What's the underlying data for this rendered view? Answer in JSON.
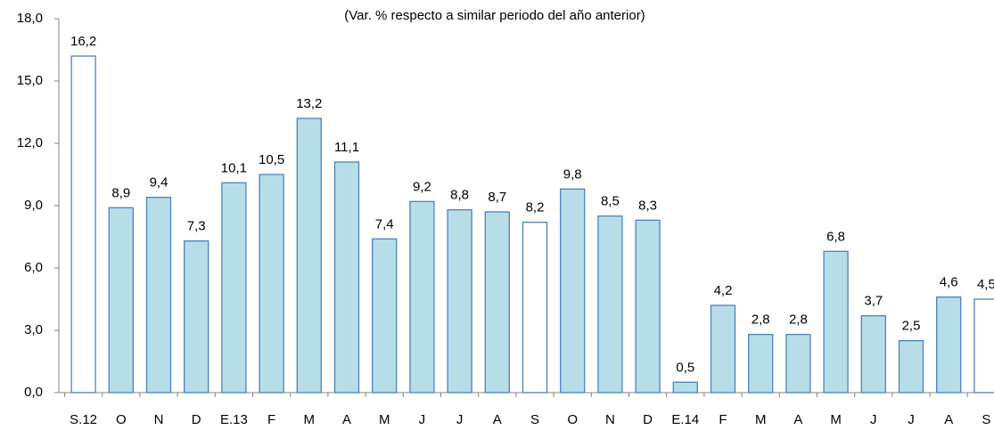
{
  "chart_data": {
    "type": "bar",
    "subtitle": "(Var. % respecto a similar periodo del año anterior)",
    "categories": [
      "S.12",
      "O",
      "N",
      "D",
      "E.13",
      "F",
      "M",
      "A",
      "M",
      "J",
      "J",
      "A",
      "S",
      "O",
      "N",
      "D",
      "E.14",
      "F",
      "M",
      "A",
      "M",
      "J",
      "J",
      "A",
      "S"
    ],
    "values": [
      16.2,
      8.9,
      9.4,
      7.3,
      10.1,
      10.5,
      13.2,
      11.1,
      7.4,
      9.2,
      8.8,
      8.7,
      8.2,
      9.8,
      8.5,
      8.3,
      0.5,
      4.2,
      2.8,
      2.8,
      6.8,
      3.7,
      2.5,
      4.6,
      4.5
    ],
    "value_labels": [
      "16,2",
      "8,9",
      "9,4",
      "7,3",
      "10,1",
      "10,5",
      "13,2",
      "11,1",
      "7,4",
      "9,2",
      "8,8",
      "8,7",
      "8,2",
      "9,8",
      "8,5",
      "8,3",
      "0,5",
      "4,2",
      "2,8",
      "2,8",
      "6,8",
      "3,7",
      "2,5",
      "4,6",
      "4,5"
    ],
    "colors": [
      "#ffffff",
      "#b7dde8",
      "#b7dde8",
      "#b7dde8",
      "#b7dde8",
      "#b7dde8",
      "#b7dde8",
      "#b7dde8",
      "#b7dde8",
      "#b7dde8",
      "#b7dde8",
      "#b7dde8",
      "#ffffff",
      "#b7dde8",
      "#b7dde8",
      "#b7dde8",
      "#b7dde8",
      "#b7dde8",
      "#b7dde8",
      "#b7dde8",
      "#b7dde8",
      "#b7dde8",
      "#b7dde8",
      "#b7dde8",
      "#ffffff"
    ],
    "edge_color": "#4f81bd",
    "ylim": [
      0,
      18
    ],
    "yticks": [
      {
        "value": 0,
        "label": "0,0"
      },
      {
        "value": 3,
        "label": "3,0"
      },
      {
        "value": 6,
        "label": "6,0"
      },
      {
        "value": 9,
        "label": "9,0"
      },
      {
        "value": 12,
        "label": "12,0"
      },
      {
        "value": 15,
        "label": "15,0"
      },
      {
        "value": 18,
        "label": "18,0"
      }
    ],
    "grid": false
  }
}
